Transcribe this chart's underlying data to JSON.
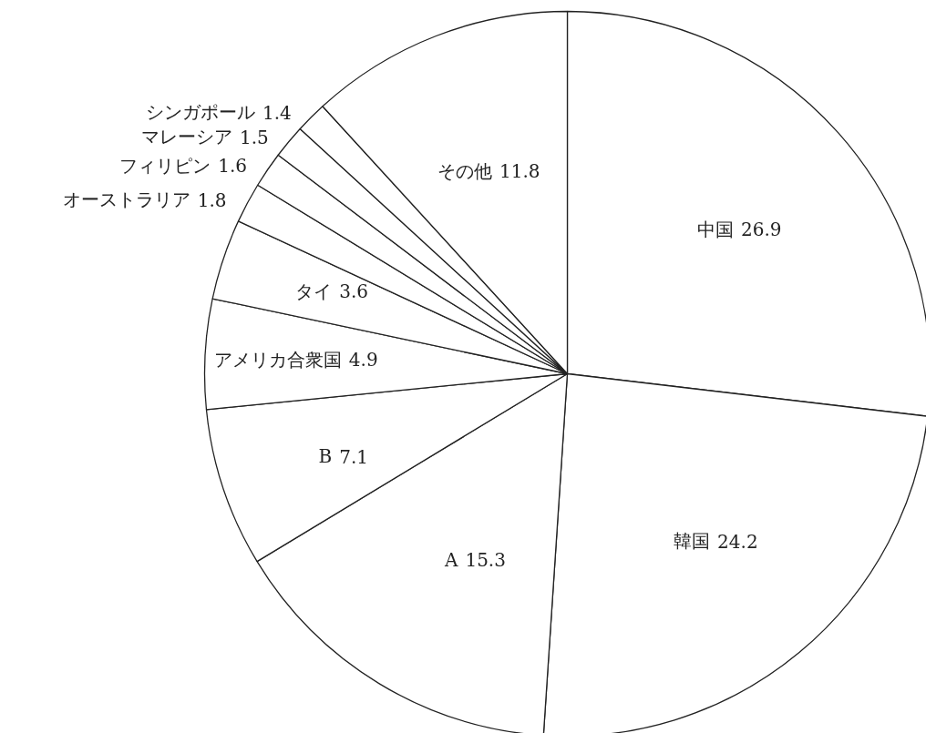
{
  "chart_data": {
    "type": "pie",
    "categories": [
      "中国",
      "韓国",
      "A",
      "B",
      "アメリカ合衆国",
      "タイ",
      "オーストラリア",
      "フィリピン",
      "マレーシア",
      "シンガポール",
      "その他"
    ],
    "values": [
      26.9,
      24.2,
      15.3,
      7.1,
      4.9,
      3.6,
      1.8,
      1.6,
      1.5,
      1.4,
      11.8
    ],
    "colors": [
      "#ffffff",
      "#ffffff",
      "#ffffff",
      "#ffffff",
      "#ffffff",
      "#ffffff",
      "#ffffff",
      "#ffffff",
      "#ffffff",
      "#ffffff",
      "#ffffff"
    ],
    "data_labels": true
  }
}
